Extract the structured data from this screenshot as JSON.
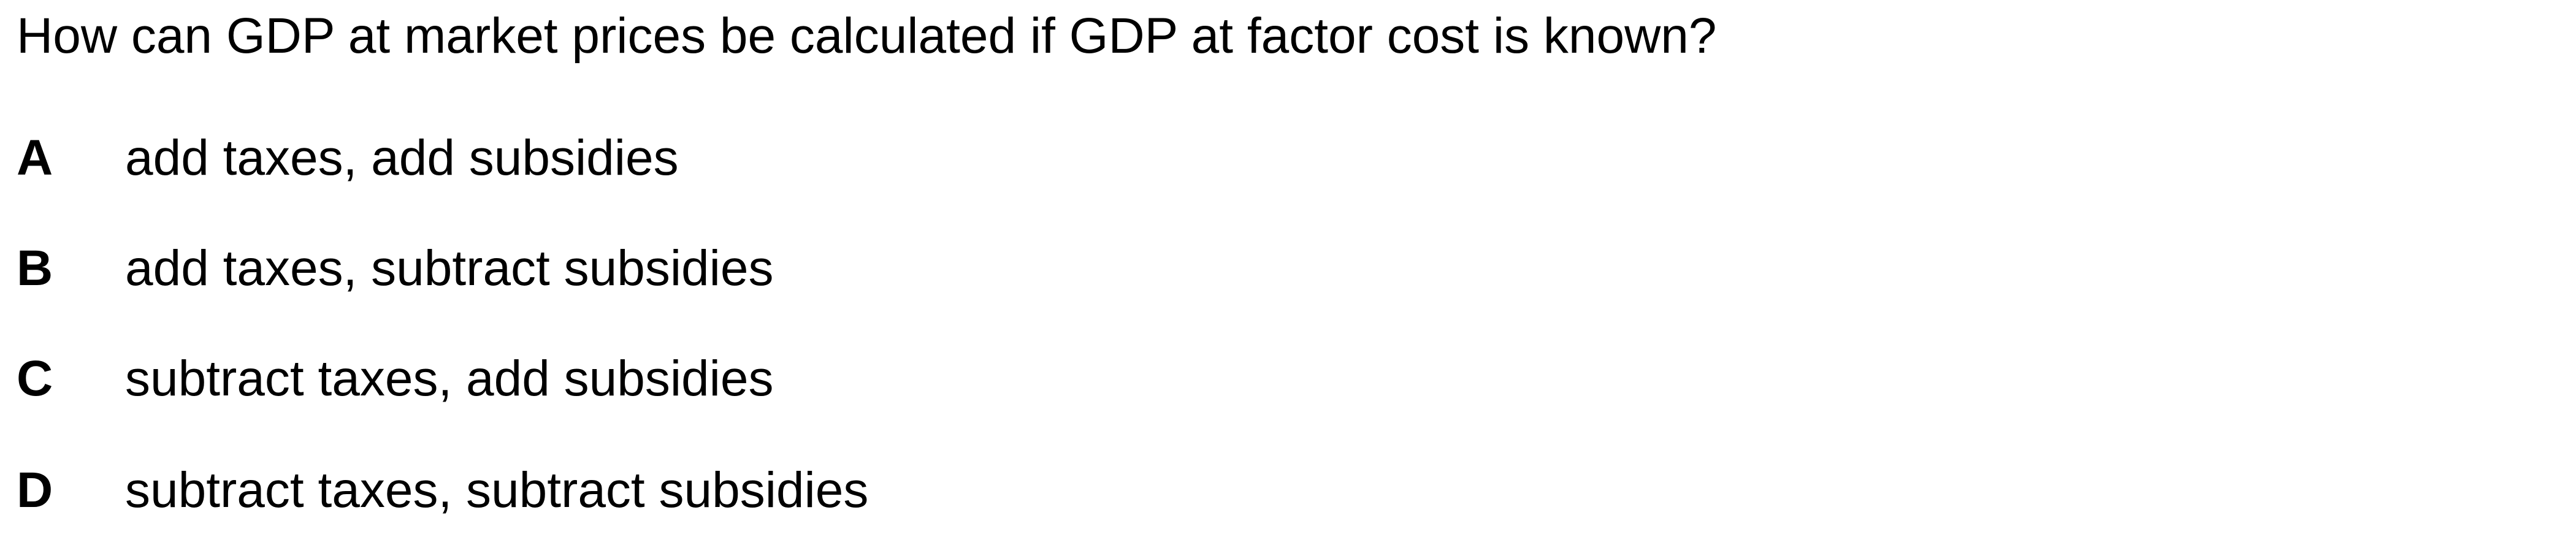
{
  "question": {
    "text": "How can GDP at market prices be calculated if GDP at factor cost is known?"
  },
  "options": [
    {
      "letter": "A",
      "text": "add taxes, add subsidies"
    },
    {
      "letter": "B",
      "text": "add taxes, subtract subsidies"
    },
    {
      "letter": "C",
      "text": "subtract taxes, add subsidies"
    },
    {
      "letter": "D",
      "text": "subtract taxes, subtract subsidies"
    }
  ]
}
